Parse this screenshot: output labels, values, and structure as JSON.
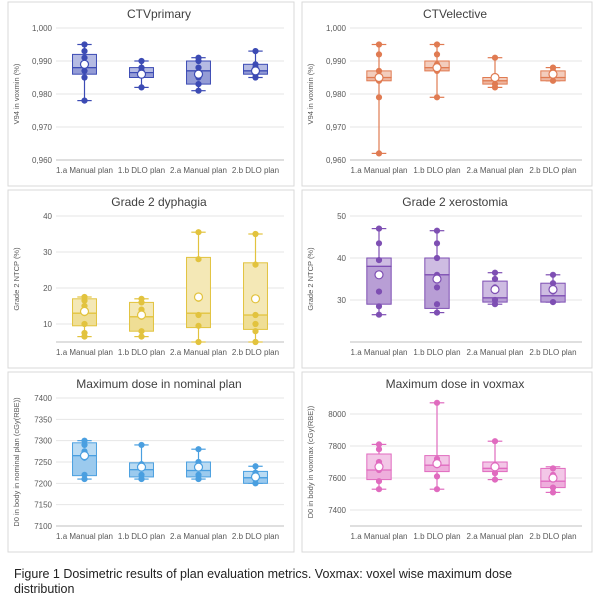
{
  "chart_data": [
    {
      "type": "box",
      "title": "CTVprimary",
      "ylabel": "V94 in voxmin (%)",
      "ylim": [
        0.96,
        1.0
      ],
      "yticks": [
        "0,960",
        "0,970",
        "0,980",
        "0,990",
        "1,000"
      ],
      "categories": [
        "1.a Manual plan",
        "1.b DLO plan",
        "2.a Manual plan",
        "2.b DLO plan"
      ],
      "color": "#3c4bb4",
      "boxes": [
        {
          "min": 0.978,
          "q1": 0.986,
          "median": 0.988,
          "q3": 0.992,
          "max": 0.995,
          "mean": 0.989,
          "points": [
            0.978,
            0.985,
            0.987,
            0.989,
            0.991,
            0.993,
            0.995
          ]
        },
        {
          "min": 0.982,
          "q1": 0.985,
          "median": 0.9865,
          "q3": 0.988,
          "max": 0.99,
          "mean": 0.986,
          "points": [
            0.982,
            0.986,
            0.987,
            0.988,
            0.99
          ]
        },
        {
          "min": 0.981,
          "q1": 0.983,
          "median": 0.987,
          "q3": 0.99,
          "max": 0.991,
          "mean": 0.986,
          "points": [
            0.981,
            0.983,
            0.985,
            0.988,
            0.99,
            0.991
          ]
        },
        {
          "min": 0.985,
          "q1": 0.986,
          "median": 0.987,
          "q3": 0.989,
          "max": 0.993,
          "mean": 0.987,
          "points": [
            0.985,
            0.986,
            0.988,
            0.989,
            0.993
          ]
        }
      ]
    },
    {
      "type": "box",
      "title": "CTVelective",
      "ylabel": "V94 in voxmin (%)",
      "ylim": [
        0.96,
        1.0
      ],
      "yticks": [
        "0,960",
        "0,970",
        "0,980",
        "0,990",
        "1,000"
      ],
      "categories": [
        "1.a Manual plan",
        "1.b DLO plan",
        "2.a Manual plan",
        "2.b DLO plan"
      ],
      "color": "#e07b52",
      "boxes": [
        {
          "min": 0.962,
          "q1": 0.984,
          "median": 0.985,
          "q3": 0.987,
          "max": 0.995,
          "mean": 0.985,
          "points": [
            0.962,
            0.979,
            0.984,
            0.987,
            0.992,
            0.995
          ]
        },
        {
          "min": 0.979,
          "q1": 0.987,
          "median": 0.988,
          "q3": 0.99,
          "max": 0.995,
          "mean": 0.988,
          "points": [
            0.979,
            0.987,
            0.989,
            0.992,
            0.995
          ]
        },
        {
          "min": 0.982,
          "q1": 0.983,
          "median": 0.984,
          "q3": 0.985,
          "max": 0.991,
          "mean": 0.985,
          "points": [
            0.982,
            0.983,
            0.985,
            0.991
          ]
        },
        {
          "min": 0.984,
          "q1": 0.984,
          "median": 0.985,
          "q3": 0.987,
          "max": 0.988,
          "mean": 0.986,
          "points": [
            0.984,
            0.986,
            0.987,
            0.988
          ]
        }
      ]
    },
    {
      "type": "box",
      "title": "Grade 2 dyphagia",
      "ylabel": "Grade 2 NTCP (%)",
      "ylim": [
        5,
        40
      ],
      "yticks": [
        "10",
        "20",
        "30",
        "40"
      ],
      "categories": [
        "1.a Manual plan",
        "1.b DLO plan",
        "2.a Manual plan",
        "2.b DLO plan"
      ],
      "color": "#e2c33e",
      "boxes": [
        {
          "min": 6.5,
          "q1": 9.5,
          "median": 13,
          "q3": 17,
          "max": 17.5,
          "mean": 13.5,
          "points": [
            6.5,
            7.5,
            10,
            13,
            15,
            16.5,
            17.5
          ]
        },
        {
          "min": 6.5,
          "q1": 8,
          "median": 12,
          "q3": 16,
          "max": 17,
          "mean": 12.5,
          "points": [
            6.5,
            8,
            12,
            14,
            16,
            17
          ]
        },
        {
          "min": 5,
          "q1": 9,
          "median": 13,
          "q3": 28.5,
          "max": 35.5,
          "mean": 17.5,
          "points": [
            5,
            9.5,
            12.5,
            17,
            28,
            35.5
          ]
        },
        {
          "min": 5,
          "q1": 8.5,
          "median": 12.5,
          "q3": 27,
          "max": 35,
          "mean": 17,
          "points": [
            5,
            8,
            10,
            12.5,
            26.5,
            35
          ]
        }
      ]
    },
    {
      "type": "box",
      "title": "Grade 2 xerostomia",
      "ylabel": "Grade 2 NTCP (%)",
      "ylim": [
        20,
        50
      ],
      "yticks": [
        "30",
        "40",
        "50"
      ],
      "categories": [
        "1.a Manual plan",
        "1.b DLO plan",
        "2.a Manual plan",
        "2.b DLO plan"
      ],
      "color": "#7e4fb3",
      "boxes": [
        {
          "min": 26.5,
          "q1": 29,
          "median": 38,
          "q3": 40,
          "max": 47,
          "mean": 36,
          "points": [
            26.5,
            28.5,
            32,
            36,
            39.5,
            43.5,
            47
          ]
        },
        {
          "min": 27,
          "q1": 28,
          "median": 36,
          "q3": 40,
          "max": 46.5,
          "mean": 35,
          "points": [
            27,
            29,
            33,
            36,
            40,
            43.5,
            46.5
          ]
        },
        {
          "min": 29,
          "q1": 29.5,
          "median": 30.5,
          "q3": 34.5,
          "max": 36.5,
          "mean": 32.5,
          "points": [
            29,
            30,
            33,
            35,
            36.5
          ]
        },
        {
          "min": 29.5,
          "q1": 29.5,
          "median": 31,
          "q3": 34,
          "max": 36,
          "mean": 32.5,
          "points": [
            29.5,
            32,
            34,
            36
          ]
        }
      ]
    },
    {
      "type": "box",
      "title": "Maximum dose in nominal plan",
      "ylabel": "D0 in body in nominal plan (cGy(RBE))",
      "ylim": [
        7100,
        7400
      ],
      "yticks": [
        "7100",
        "7150",
        "7200",
        "7250",
        "7300",
        "7350",
        "7400"
      ],
      "categories": [
        "1.a Manual plan",
        "1.b DLO plan",
        "2.a Manual plan",
        "2.b DLO plan"
      ],
      "color": "#4a9fe0",
      "boxes": [
        {
          "min": 7210,
          "q1": 7218,
          "median": 7265,
          "q3": 7295,
          "max": 7300,
          "mean": 7265,
          "points": [
            7210,
            7220,
            7260,
            7275,
            7290,
            7300
          ]
        },
        {
          "min": 7210,
          "q1": 7215,
          "median": 7232,
          "q3": 7248,
          "max": 7290,
          "mean": 7238,
          "points": [
            7210,
            7220,
            7235,
            7245,
            7290
          ]
        },
        {
          "min": 7210,
          "q1": 7215,
          "median": 7230,
          "q3": 7250,
          "max": 7280,
          "mean": 7238,
          "points": [
            7210,
            7220,
            7240,
            7250,
            7280
          ]
        },
        {
          "min": 7200,
          "q1": 7200,
          "median": 7213,
          "q3": 7228,
          "max": 7240,
          "mean": 7215,
          "points": [
            7200,
            7210,
            7225,
            7240
          ]
        }
      ]
    },
    {
      "type": "box",
      "title": "Maximum dose in voxmax",
      "ylabel": "D0 in body in voxmax (cGy(RBE))",
      "ylim": [
        7300,
        8100
      ],
      "yticks": [
        "7400",
        "7600",
        "7800",
        "8000"
      ],
      "categories": [
        "1.a Manual plan",
        "1.b DLO plan",
        "2.a Manual plan",
        "2.b DLO plan"
      ],
      "color": "#e06bbf",
      "boxes": [
        {
          "min": 7530,
          "q1": 7590,
          "median": 7650,
          "q3": 7750,
          "max": 7810,
          "mean": 7670,
          "points": [
            7530,
            7580,
            7650,
            7700,
            7780,
            7810
          ]
        },
        {
          "min": 7530,
          "q1": 7640,
          "median": 7680,
          "q3": 7740,
          "max": 8070,
          "mean": 7690,
          "points": [
            7530,
            7610,
            7680,
            7720,
            8070
          ]
        },
        {
          "min": 7590,
          "q1": 7640,
          "median": 7660,
          "q3": 7700,
          "max": 7830,
          "mean": 7670,
          "points": [
            7590,
            7630,
            7680,
            7830
          ]
        },
        {
          "min": 7510,
          "q1": 7540,
          "median": 7580,
          "q3": 7660,
          "max": 7670,
          "mean": 7600,
          "points": [
            7510,
            7540,
            7620,
            7660
          ]
        }
      ]
    }
  ],
  "caption": {
    "line1": "Figure 1 Dosimetric results of plan evaluation metrics. Voxmax: voxel wise maximum dose",
    "line2": "distribution"
  }
}
